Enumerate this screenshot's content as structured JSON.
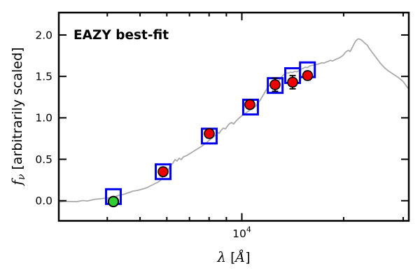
{
  "figure": {
    "annotation": {
      "text": "EAZY best-fit",
      "color": "#ff0000"
    },
    "xlabel": {
      "symbol": "λ",
      "open": " [",
      "unit": "Å",
      "close": "]"
    },
    "ylabel": {
      "symbol": "f",
      "sub": "ν",
      "rest": " [arbitrarily scaled]"
    }
  },
  "chart_data": {
    "type": "line",
    "title": "EAZY best-fit",
    "xlabel": "λ [Å]",
    "ylabel": "fν [arbitrarily scaled]",
    "x_axis": {
      "scale": "log",
      "min": 2875,
      "max": 31170,
      "major_ticks": [
        10000
      ],
      "major_tick_label": {
        "base": "10",
        "exp": "4"
      },
      "minor_ticks": [
        4000,
        5000,
        6000,
        7000,
        8000,
        9000,
        20000,
        30000
      ]
    },
    "y_axis": {
      "min": -0.243,
      "max": 2.27,
      "ticks": [
        0.0,
        0.5,
        1.0,
        1.5,
        2.0
      ],
      "tick_labels": [
        "0.0",
        "0.5",
        "1.0",
        "1.5",
        "2.0"
      ]
    },
    "colors": {
      "spectrum": "#aaaaaa",
      "model_squares": "#0000ee",
      "observed_points": "#ee0000",
      "flagged_point": "#32cd32",
      "marker_edge": "#000000",
      "axes": "#000000"
    },
    "series": {
      "best_fit_spectrum": {
        "name": "EAZY best-fit model spectrum",
        "type": "line",
        "points": [
          [
            2875,
            -0.015
          ],
          [
            3030,
            -0.007
          ],
          [
            3147,
            -0.011
          ],
          [
            3254,
            -0.011
          ],
          [
            3381,
            0.002
          ],
          [
            3495,
            -0.003
          ],
          [
            3579,
            0.006
          ],
          [
            3700,
            0.019
          ],
          [
            3807,
            0.023
          ],
          [
            3936,
            0.031
          ],
          [
            4070,
            0.035
          ],
          [
            4189,
            0.044
          ],
          [
            4332,
            0.065
          ],
          [
            4479,
            0.078
          ],
          [
            4608,
            0.095
          ],
          [
            4765,
            0.116
          ],
          [
            4903,
            0.124
          ],
          [
            5046,
            0.137
          ],
          [
            5168,
            0.149
          ],
          [
            5242,
            0.158
          ],
          [
            5343,
            0.175
          ],
          [
            5446,
            0.192
          ],
          [
            5551,
            0.209
          ],
          [
            5658,
            0.225
          ],
          [
            5767,
            0.251
          ],
          [
            5849,
            0.293
          ],
          [
            5934,
            0.327
          ],
          [
            6048,
            0.369
          ],
          [
            6135,
            0.42
          ],
          [
            6253,
            0.453
          ],
          [
            6343,
            0.496
          ],
          [
            6434,
            0.479
          ],
          [
            6527,
            0.513
          ],
          [
            6620,
            0.496
          ],
          [
            6715,
            0.53
          ],
          [
            6813,
            0.538
          ],
          [
            6910,
            0.551
          ],
          [
            7043,
            0.572
          ],
          [
            7178,
            0.593
          ],
          [
            7316,
            0.614
          ],
          [
            7457,
            0.635
          ],
          [
            7600,
            0.656
          ],
          [
            7747,
            0.682
          ],
          [
            7896,
            0.707
          ],
          [
            8048,
            0.736
          ],
          [
            8203,
            0.762
          ],
          [
            8362,
            0.791
          ],
          [
            8483,
            0.825
          ],
          [
            8564,
            0.812
          ],
          [
            8687,
            0.85
          ],
          [
            8813,
            0.876
          ],
          [
            8940,
            0.867
          ],
          [
            9069,
            0.901
          ],
          [
            9199,
            0.931
          ],
          [
            9332,
            0.943
          ],
          [
            9467,
            0.926
          ],
          [
            9603,
            0.96
          ],
          [
            9741,
            0.986
          ],
          [
            9881,
            1.007
          ],
          [
            10072,
            1.036
          ],
          [
            10217,
            1.053
          ],
          [
            10364,
            1.07
          ],
          [
            10513,
            1.087
          ],
          [
            10665,
            1.104
          ],
          [
            10818,
            1.116
          ],
          [
            10974,
            1.138
          ],
          [
            11132,
            1.171
          ],
          [
            11293,
            1.205
          ],
          [
            11455,
            1.247
          ],
          [
            11620,
            1.289
          ],
          [
            11788,
            1.332
          ],
          [
            11958,
            1.374
          ],
          [
            12130,
            1.399
          ],
          [
            12364,
            1.387
          ],
          [
            12541,
            1.399
          ],
          [
            12783,
            1.433
          ],
          [
            12967,
            1.467
          ],
          [
            13153,
            1.5
          ],
          [
            13343,
            1.526
          ],
          [
            13535,
            1.543
          ],
          [
            13730,
            1.539
          ],
          [
            13928,
            1.551
          ],
          [
            14128,
            1.547
          ],
          [
            14332,
            1.56
          ],
          [
            14538,
            1.556
          ],
          [
            14748,
            1.568
          ],
          [
            14960,
            1.585
          ],
          [
            15176,
            1.598
          ],
          [
            15395,
            1.611
          ],
          [
            15617,
            1.606
          ],
          [
            15842,
            1.623
          ],
          [
            16071,
            1.632
          ],
          [
            16303,
            1.636
          ],
          [
            16538,
            1.644
          ],
          [
            16777,
            1.648
          ],
          [
            17019,
            1.657
          ],
          [
            17265,
            1.665
          ],
          [
            17514,
            1.661
          ],
          [
            17767,
            1.674
          ],
          [
            18023,
            1.682
          ],
          [
            18284,
            1.695
          ],
          [
            18548,
            1.686
          ],
          [
            18815,
            1.699
          ],
          [
            19087,
            1.712
          ],
          [
            19362,
            1.72
          ],
          [
            19642,
            1.737
          ],
          [
            19925,
            1.754
          ],
          [
            20213,
            1.788
          ],
          [
            20504,
            1.809
          ],
          [
            20700,
            1.813
          ],
          [
            20898,
            1.8
          ],
          [
            21098,
            1.83
          ],
          [
            21299,
            1.864
          ],
          [
            21503,
            1.897
          ],
          [
            21708,
            1.927
          ],
          [
            21916,
            1.944
          ],
          [
            22125,
            1.953
          ],
          [
            22337,
            1.948
          ],
          [
            22550,
            1.94
          ],
          [
            22766,
            1.927
          ],
          [
            22984,
            1.91
          ],
          [
            23203,
            1.893
          ],
          [
            23425,
            1.882
          ],
          [
            23650,
            1.857
          ],
          [
            23876,
            1.831
          ],
          [
            24220,
            1.797
          ],
          [
            24568,
            1.764
          ],
          [
            24922,
            1.73
          ],
          [
            25280,
            1.696
          ],
          [
            25644,
            1.662
          ],
          [
            26012,
            1.633
          ],
          [
            26386,
            1.608
          ],
          [
            26766,
            1.586
          ],
          [
            27151,
            1.565
          ],
          [
            27541,
            1.549
          ],
          [
            27937,
            1.532
          ],
          [
            28339,
            1.515
          ],
          [
            28747,
            1.498
          ],
          [
            29161,
            1.481
          ],
          [
            29580,
            1.46
          ],
          [
            30006,
            1.437
          ],
          [
            30293,
            1.414
          ],
          [
            30582,
            1.39
          ],
          [
            30875,
            1.368
          ],
          [
            31170,
            1.345
          ]
        ]
      },
      "model_photometry": {
        "name": "model photometry (open blue squares)",
        "type": "scatter",
        "marker": "open-square",
        "points": [
          [
            4170,
            0.05
          ],
          [
            5850,
            0.35
          ],
          [
            8010,
            0.78
          ],
          [
            10610,
            1.13
          ],
          [
            12550,
            1.39
          ],
          [
            14130,
            1.51
          ],
          [
            15630,
            1.58
          ]
        ]
      },
      "observed_photometry": {
        "name": "observed photometry (red circles)",
        "type": "scatter",
        "marker": "circle",
        "points": [
          [
            5850,
            0.35
          ],
          [
            8010,
            0.81
          ],
          [
            10560,
            1.16
          ],
          [
            12540,
            1.4
          ],
          [
            14130,
            1.43
          ],
          [
            15650,
            1.51
          ]
        ],
        "yerr": [
          0.05,
          0.05,
          0.04,
          0.08,
          0.08,
          0.05
        ]
      },
      "flagged_photometry": {
        "name": "flagged photometry (green circle)",
        "type": "scatter",
        "marker": "circle",
        "points": [
          [
            4170,
            -0.01
          ]
        ],
        "yerr": [
          0.0
        ]
      }
    }
  }
}
